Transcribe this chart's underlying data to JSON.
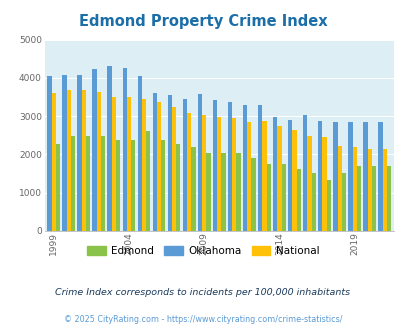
{
  "title": "Edmond Property Crime Index",
  "years": [
    1999,
    2000,
    2001,
    2002,
    2003,
    2004,
    2005,
    2006,
    2007,
    2008,
    2009,
    2010,
    2011,
    2012,
    2013,
    2014,
    2015,
    2016,
    2017,
    2018,
    2019,
    2020,
    2021
  ],
  "edmond": [
    2270,
    2470,
    2480,
    2470,
    2380,
    2370,
    2620,
    2390,
    2280,
    2200,
    2040,
    2040,
    2030,
    1900,
    1760,
    1750,
    1620,
    1510,
    1340,
    1510,
    1690,
    1690,
    1700
  ],
  "oklahoma": [
    4060,
    4080,
    4080,
    4240,
    4310,
    4260,
    4060,
    3600,
    3560,
    3460,
    3580,
    3430,
    3360,
    3290,
    3300,
    2990,
    2910,
    3020,
    2880,
    2850,
    2840,
    2840,
    2840
  ],
  "national": [
    3600,
    3680,
    3680,
    3620,
    3510,
    3510,
    3450,
    3360,
    3250,
    3080,
    3040,
    2980,
    2940,
    2850,
    2880,
    2740,
    2630,
    2490,
    2450,
    2230,
    2200,
    2140,
    2140
  ],
  "edmond_color": "#8BC34A",
  "oklahoma_color": "#5B9BD5",
  "national_color": "#FFC107",
  "bg_color": "#ddeef5",
  "outer_bg": "#ffffff",
  "ylim": [
    0,
    5000
  ],
  "yticks": [
    0,
    1000,
    2000,
    3000,
    4000,
    5000
  ],
  "xtick_years": [
    1999,
    2004,
    2009,
    2014,
    2019
  ],
  "subtitle": "Crime Index corresponds to incidents per 100,000 inhabitants",
  "footer": "© 2025 CityRating.com - https://www.cityrating.com/crime-statistics/",
  "title_color": "#1B6EA8",
  "subtitle_color": "#1a3a5c",
  "footer_color": "#5B9BD5"
}
